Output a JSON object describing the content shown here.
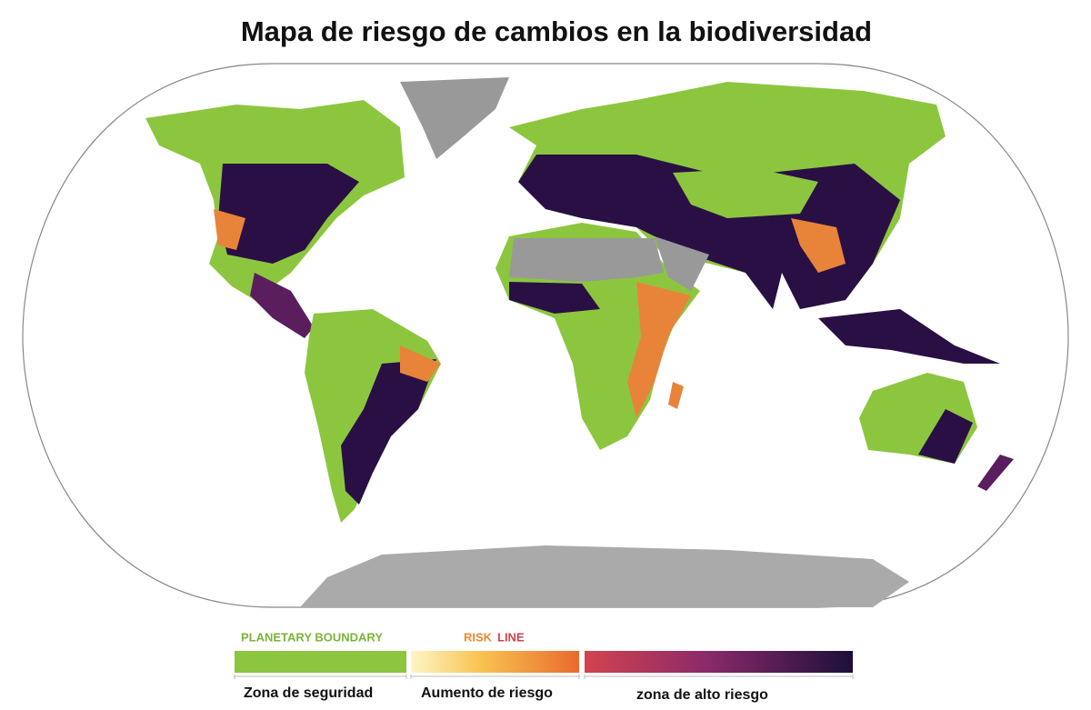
{
  "title": "Mapa de riesgo de cambios en la biodiversidad",
  "legend": {
    "boundary": "PLANETARY BOUNDARY",
    "risk": "RISK",
    "line": "LINE",
    "zones": [
      "Zona de seguridad",
      "Aumento de riesgo",
      "zona de alto riesgo"
    ]
  }
}
